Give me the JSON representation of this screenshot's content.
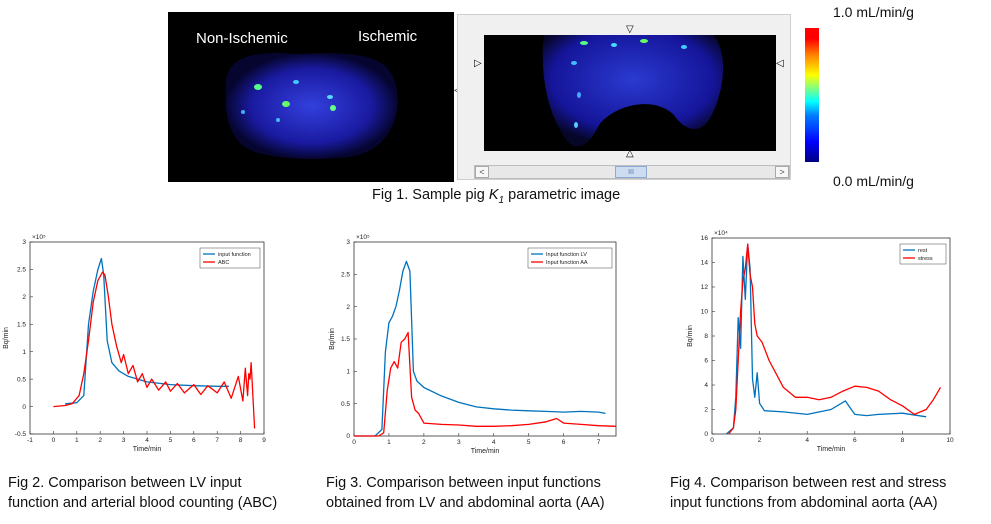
{
  "fig1": {
    "left_labels": [
      "Non-Ischemic",
      "Ischemic"
    ],
    "scroll_thumb": "III",
    "scroll_left": "<",
    "scroll_right": ">",
    "caption_prefix": "Fig 1. Sample pig ",
    "caption_k": "K",
    "caption_sub": "1",
    "caption_suffix": " parametric image",
    "colorbar_max": "1.0 mL/min/g",
    "colorbar_min": "0.0 mL/min/g",
    "colorbar_colors": [
      "#00007f",
      "#0000ff",
      "#00ffff",
      "#ffff00",
      "#ff0000"
    ]
  },
  "captions": {
    "fig2": [
      "Fig 2. Comparison between LV input",
      "function and arterial blood counting (ABC)"
    ],
    "fig3": [
      "Fig 3. Comparison between input functions",
      "obtained from LV and abdominal aorta (AA)"
    ],
    "fig4": [
      "Fig 4. Comparison between rest and stress",
      "input functions from abdominal aorta (AA)"
    ]
  },
  "chart_data": [
    {
      "type": "line",
      "xlabel": "Time/min",
      "ylabel": "Bq/min",
      "exponent": "×10⁵",
      "xlim": [
        -1,
        9
      ],
      "ylim": [
        -0.5,
        3
      ],
      "xticks": [
        "-1",
        "0",
        "1",
        "2",
        "3",
        "4",
        "5",
        "6",
        "7",
        "8",
        "9"
      ],
      "yticks": [
        "-0.5",
        "0",
        "0.5",
        "1",
        "1.5",
        "2",
        "2.5",
        "3"
      ],
      "legend": "top-right",
      "series": [
        {
          "name": "input function",
          "color": "#0072bd",
          "x": [
            0.5,
            1.0,
            1.3,
            1.5,
            1.7,
            1.9,
            2.05,
            2.15,
            2.3,
            2.5,
            2.8,
            3.2,
            4.0,
            5.0,
            6.0,
            7.0,
            7.5
          ],
          "y": [
            0.05,
            0.07,
            0.2,
            1.5,
            2.1,
            2.5,
            2.7,
            2.4,
            1.2,
            0.8,
            0.65,
            0.55,
            0.45,
            0.4,
            0.38,
            0.37,
            0.37
          ]
        },
        {
          "name": "ABC",
          "color": "#ff0000",
          "x": [
            0.0,
            0.5,
            0.8,
            1.1,
            1.3,
            1.5,
            1.7,
            1.9,
            2.1,
            2.2,
            2.35,
            2.5,
            2.7,
            2.9,
            3.0,
            3.2,
            3.4,
            3.6,
            3.8,
            4.0,
            4.2,
            4.5,
            4.8,
            5.0,
            5.3,
            5.6,
            6.0,
            6.3,
            6.6,
            7.0,
            7.3,
            7.6,
            7.9,
            8.1,
            8.2,
            8.3,
            8.35,
            8.4,
            8.45,
            8.5,
            8.6
          ],
          "y": [
            0.0,
            0.02,
            0.05,
            0.2,
            0.6,
            1.2,
            1.9,
            2.3,
            2.45,
            2.4,
            2.0,
            1.5,
            1.1,
            0.8,
            0.95,
            0.6,
            0.75,
            0.45,
            0.6,
            0.35,
            0.5,
            0.3,
            0.45,
            0.28,
            0.42,
            0.25,
            0.4,
            0.22,
            0.38,
            0.25,
            0.45,
            0.15,
            0.55,
            0.1,
            0.7,
            0.2,
            0.6,
            0.5,
            0.8,
            0.4,
            -0.4
          ]
        }
      ]
    },
    {
      "type": "line",
      "xlabel": "Time/min",
      "ylabel": "Bq/min",
      "exponent": "×10⁵",
      "xlim": [
        0,
        7.5
      ],
      "ylim": [
        0,
        3
      ],
      "xticks": [
        "0",
        "1",
        "2",
        "3",
        "4",
        "5",
        "6",
        "7"
      ],
      "yticks": [
        "0",
        "0.5",
        "1",
        "1.5",
        "2",
        "2.5",
        "3"
      ],
      "legend": "top-right",
      "series": [
        {
          "name": "Input function LV",
          "color": "#0072bd",
          "x": [
            0,
            0.6,
            0.8,
            0.9,
            1.0,
            1.1,
            1.2,
            1.3,
            1.4,
            1.5,
            1.6,
            1.7,
            1.8,
            2.0,
            2.5,
            3.0,
            3.5,
            4.0,
            4.5,
            5.0,
            5.5,
            6.0,
            6.5,
            7.0,
            7.2
          ],
          "y": [
            0,
            0.0,
            0.1,
            1.3,
            1.75,
            1.85,
            2.0,
            2.25,
            2.55,
            2.7,
            2.55,
            1.0,
            0.85,
            0.75,
            0.62,
            0.52,
            0.45,
            0.42,
            0.4,
            0.39,
            0.38,
            0.37,
            0.38,
            0.37,
            0.35
          ]
        },
        {
          "name": "Input function AA",
          "color": "#ff0000",
          "x": [
            0,
            0.7,
            0.85,
            0.95,
            1.05,
            1.15,
            1.25,
            1.35,
            1.45,
            1.55,
            1.65,
            1.75,
            1.85,
            2.0,
            2.5,
            3.0,
            3.5,
            4.0,
            4.5,
            5.0,
            5.5,
            5.8,
            6.0,
            6.5,
            7.0,
            7.5
          ],
          "y": [
            0,
            0.0,
            0.05,
            0.7,
            1.05,
            1.15,
            1.05,
            1.45,
            1.5,
            1.6,
            0.6,
            0.4,
            0.35,
            0.2,
            0.18,
            0.17,
            0.15,
            0.15,
            0.16,
            0.18,
            0.22,
            0.27,
            0.2,
            0.18,
            0.16,
            0.15
          ]
        }
      ]
    },
    {
      "type": "line",
      "xlabel": "Time/min",
      "ylabel": "Bq/min",
      "exponent": "×10⁴",
      "xlim": [
        0,
        10
      ],
      "ylim": [
        0,
        16
      ],
      "xticks": [
        "0",
        "2",
        "4",
        "6",
        "8",
        "10"
      ],
      "yticks": [
        "0",
        "2",
        "4",
        "6",
        "8",
        "10",
        "12",
        "14",
        "16"
      ],
      "legend": "top-right",
      "series": [
        {
          "name": "rest",
          "color": "#0072bd",
          "x": [
            0.6,
            0.9,
            1.0,
            1.1,
            1.2,
            1.3,
            1.4,
            1.5,
            1.6,
            1.7,
            1.8,
            1.9,
            2.0,
            2.2,
            3.0,
            4.0,
            5.0,
            5.6,
            6.0,
            6.5,
            7.0,
            8.0,
            9.0
          ],
          "y": [
            0,
            0.5,
            3.0,
            9.5,
            7.0,
            14.5,
            11.0,
            15.5,
            13.5,
            4.5,
            3.0,
            5.0,
            2.5,
            1.9,
            1.8,
            1.6,
            2.0,
            2.7,
            1.6,
            1.5,
            1.6,
            1.7,
            1.4
          ]
        },
        {
          "name": "stress",
          "color": "#ff0000",
          "x": [
            0.7,
            0.9,
            1.0,
            1.1,
            1.2,
            1.3,
            1.4,
            1.5,
            1.6,
            1.7,
            1.8,
            1.9,
            2.1,
            2.4,
            3.0,
            3.5,
            4.0,
            4.5,
            5.0,
            5.5,
            6.0,
            6.5,
            7.0,
            7.5,
            8.0,
            8.5,
            9.0,
            9.3,
            9.6
          ],
          "y": [
            0,
            0.5,
            2.0,
            6.0,
            10.0,
            12.5,
            13.5,
            15.5,
            13.0,
            12.0,
            9.0,
            8.0,
            7.5,
            6.0,
            3.8,
            3.0,
            3.0,
            2.8,
            3.0,
            3.5,
            3.9,
            3.8,
            3.5,
            2.8,
            2.3,
            1.6,
            2.0,
            2.8,
            3.8
          ]
        }
      ]
    }
  ]
}
